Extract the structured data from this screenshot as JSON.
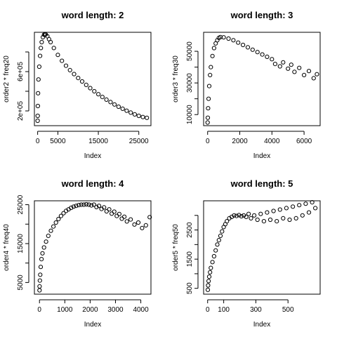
{
  "chart_data": [
    {
      "type": "scatter",
      "title": "word length: 2",
      "xlabel": "Index",
      "ylabel": "order2 * freq20",
      "xlim": [
        -800,
        28000
      ],
      "ylim": [
        50000,
        1000000
      ],
      "xticks": [
        0,
        5000,
        15000,
        25000
      ],
      "xtick_labels": [
        "0",
        "5000",
        "15000",
        "25000"
      ],
      "yticks": [
        200000,
        600000
      ],
      "ytick_labels": [
        "2e+05",
        "6e+05"
      ],
      "y_minor_ticks": [
        400000,
        800000
      ],
      "x": [
        1,
        10,
        50,
        100,
        200,
        400,
        600,
        800,
        1000,
        1300,
        1600,
        1800,
        2000,
        2400,
        2800,
        3200,
        4000,
        5000,
        6000,
        7000,
        8000,
        9000,
        10000,
        11000,
        12000,
        13000,
        14000,
        15000,
        16000,
        17000,
        18000,
        19000,
        20000,
        21000,
        22000,
        23000,
        24000,
        25000,
        26000,
        27000
      ],
      "y": [
        100000,
        150000,
        250000,
        380000,
        520000,
        650000,
        760000,
        840000,
        900000,
        950000,
        975000,
        982000,
        978000,
        960000,
        930000,
        900000,
        840000,
        770000,
        710000,
        660000,
        615000,
        575000,
        535000,
        500000,
        465000,
        432000,
        400000,
        370000,
        342000,
        315000,
        290000,
        266000,
        243000,
        222000,
        202000,
        183000,
        165000,
        150000,
        138000,
        130000
      ]
    },
    {
      "type": "scatter",
      "title": "word length: 3",
      "xlabel": "Index",
      "ylabel": "order3 * freq30",
      "xlim": [
        -250,
        7000
      ],
      "ylim": [
        3000,
        62000
      ],
      "xticks": [
        0,
        2000,
        4000,
        6000
      ],
      "xtick_labels": [
        "0",
        "2000",
        "4000",
        "6000"
      ],
      "yticks": [
        10000,
        30000,
        50000
      ],
      "ytick_labels": [
        "10000",
        "30000",
        "50000"
      ],
      "y_minor_ticks": [
        20000,
        40000
      ],
      "x": [
        1,
        10,
        30,
        60,
        100,
        150,
        200,
        300,
        400,
        500,
        600,
        700,
        800,
        1000,
        1300,
        1600,
        1900,
        2200,
        2500,
        2800,
        3100,
        3400,
        3700,
        4000,
        4200,
        4500,
        4700,
        5000,
        5200,
        5400,
        5700,
        6000,
        6300,
        6600,
        6800
      ],
      "y": [
        5000,
        8000,
        14000,
        20000,
        28000,
        35000,
        40000,
        47000,
        52000,
        55000,
        57000,
        58500,
        59000,
        58800,
        58000,
        57000,
        55500,
        54000,
        52500,
        51000,
        49500,
        48000,
        46500,
        45000,
        42000,
        40500,
        43000,
        39000,
        41500,
        37000,
        39500,
        35000,
        37500,
        33000,
        35500
      ]
    },
    {
      "type": "scatter",
      "title": "word length: 4",
      "xlabel": "Index",
      "ylabel": "order4 * freq40",
      "xlim": [
        -200,
        4400
      ],
      "ylim": [
        2000,
        26000
      ],
      "xticks": [
        0,
        1000,
        2000,
        3000,
        4000
      ],
      "xtick_labels": [
        "0",
        "1000",
        "2000",
        "3000",
        "4000"
      ],
      "yticks": [
        5000,
        15000,
        25000
      ],
      "ytick_labels": [
        "5000",
        "15000",
        "25000"
      ],
      "y_minor_ticks": [
        10000,
        20000
      ],
      "x": [
        1,
        5,
        15,
        30,
        50,
        80,
        120,
        180,
        260,
        350,
        450,
        550,
        650,
        750,
        850,
        950,
        1050,
        1150,
        1250,
        1350,
        1450,
        1550,
        1650,
        1750,
        1850,
        1950,
        2050,
        2150,
        2250,
        2350,
        2450,
        2550,
        2650,
        2750,
        2850,
        2950,
        3050,
        3150,
        3250,
        3350,
        3450,
        3600,
        3750,
        3900,
        4050,
        4200,
        4350
      ],
      "y": [
        3000,
        4000,
        5500,
        7000,
        9000,
        11000,
        12500,
        14000,
        15500,
        17000,
        18300,
        19400,
        20400,
        21300,
        22100,
        22800,
        23400,
        23800,
        24200,
        24500,
        24700,
        24900,
        25000,
        25000,
        25100,
        25000,
        24800,
        25000,
        24400,
        24700,
        23900,
        24300,
        23300,
        23800,
        22700,
        23200,
        22100,
        22600,
        21400,
        21900,
        20700,
        21200,
        19900,
        20400,
        19000,
        19700,
        21800
      ]
    },
    {
      "type": "scatter",
      "title": "word length: 5",
      "xlabel": "Index",
      "ylabel": "order5 * freq50",
      "xlim": [
        -25,
        700
      ],
      "ylim": [
        300,
        3500
      ],
      "xticks": [
        0,
        100,
        300,
        500
      ],
      "xtick_labels": [
        "0",
        "100",
        "300",
        "500"
      ],
      "yticks": [
        500,
        1500,
        2500
      ],
      "ytick_labels": [
        "500",
        "1500",
        "2500"
      ],
      "y_minor_ticks": [
        1000,
        2000,
        3000
      ],
      "x": [
        1,
        3,
        6,
        10,
        15,
        20,
        30,
        40,
        50,
        60,
        70,
        80,
        90,
        100,
        110,
        120,
        135,
        150,
        165,
        180,
        195,
        210,
        225,
        240,
        255,
        270,
        290,
        310,
        330,
        350,
        370,
        390,
        410,
        430,
        450,
        470,
        490,
        510,
        530,
        550,
        570,
        590,
        610,
        630,
        650,
        670
      ],
      "y": [
        450,
        600,
        750,
        900,
        1050,
        1200,
        1400,
        1600,
        1800,
        2000,
        2150,
        2300,
        2450,
        2600,
        2700,
        2800,
        2900,
        2950,
        3000,
        2980,
        3010,
        2970,
        3000,
        2950,
        3050,
        2900,
        3000,
        2850,
        3050,
        2800,
        3100,
        2850,
        3150,
        2800,
        3200,
        2900,
        3250,
        2850,
        3300,
        2900,
        3350,
        3000,
        3400,
        3100,
        3450,
        3250
      ]
    }
  ]
}
